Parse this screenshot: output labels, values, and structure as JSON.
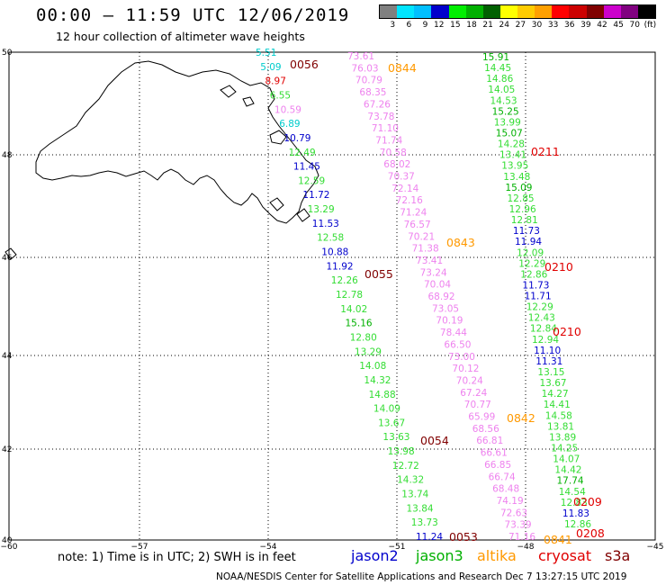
{
  "header": {
    "title": "00:00 – 11:59 UTC 12/06/2019",
    "subtitle": "12 hour collection of altimeter wave heights"
  },
  "color_scale": {
    "labels": [
      "3",
      "6",
      "9",
      "12",
      "15",
      "18",
      "21",
      "24",
      "27",
      "30",
      "33",
      "36",
      "39",
      "42",
      "45",
      "70",
      "(ft)"
    ],
    "colors": [
      "#808080",
      "#00e5ff",
      "#00bfff",
      "#0000cc",
      "#00ee00",
      "#00b000",
      "#006000",
      "#ffff00",
      "#ffcc00",
      "#ffa000",
      "#ff0000",
      "#cc0000",
      "#800000",
      "#cc00cc",
      "#800080",
      "#000000"
    ]
  },
  "map": {
    "lat_ticks": [
      "50",
      "48",
      "46",
      "44",
      "42",
      "40"
    ],
    "lon_ticks": [
      "−60",
      "−57",
      "−54",
      "−51",
      "−48",
      "−45"
    ]
  },
  "satellite_colors": {
    "jason2": "#0000cc",
    "jason3": "#00b000",
    "altika": "#ff9900",
    "cryosat": "#e00000",
    "s3a": "#800000",
    "pink": "#ee82ee",
    "cyan": "#00cccc",
    "lightgreen": "#33dd33"
  },
  "tracks": {
    "west": {
      "items": [
        {
          "v": "5.51",
          "c": "cyan"
        },
        {
          "v": "5.09",
          "c": "cyan"
        },
        {
          "v": "8.97",
          "c": "cryosat"
        },
        {
          "v": "6.55",
          "c": "lightgreen"
        },
        {
          "v": "10.59",
          "c": "pink"
        },
        {
          "v": "6.89",
          "c": "cyan"
        },
        {
          "v": "10.79",
          "c": "jason2"
        },
        {
          "v": "12.49",
          "c": "lightgreen"
        },
        {
          "v": "11.45",
          "c": "jason2"
        },
        {
          "v": "12.59",
          "c": "lightgreen"
        },
        {
          "v": "11.72",
          "c": "jason2"
        },
        {
          "v": "13.29",
          "c": "lightgreen"
        },
        {
          "v": "11.53",
          "c": "jason2"
        },
        {
          "v": "12.58",
          "c": "lightgreen"
        },
        {
          "v": "10.88",
          "c": "jason2"
        },
        {
          "v": "11.92",
          "c": "jason2"
        },
        {
          "v": "12.26",
          "c": "lightgreen"
        },
        {
          "v": "12.78",
          "c": "lightgreen"
        },
        {
          "v": "14.02",
          "c": "lightgreen"
        },
        {
          "v": "15.16",
          "c": "jason3"
        },
        {
          "v": "12.80",
          "c": "lightgreen"
        },
        {
          "v": "13.29",
          "c": "lightgreen"
        },
        {
          "v": "14.08",
          "c": "lightgreen"
        },
        {
          "v": "14.32",
          "c": "lightgreen"
        },
        {
          "v": "14.88",
          "c": "lightgreen"
        },
        {
          "v": "14.09",
          "c": "lightgreen"
        },
        {
          "v": "13.67",
          "c": "lightgreen"
        },
        {
          "v": "13.63",
          "c": "lightgreen"
        },
        {
          "v": "13.98",
          "c": "lightgreen"
        },
        {
          "v": "12.72",
          "c": "lightgreen"
        },
        {
          "v": "14.32",
          "c": "lightgreen"
        },
        {
          "v": "13.74",
          "c": "lightgreen"
        },
        {
          "v": "13.84",
          "c": "lightgreen"
        },
        {
          "v": "13.73",
          "c": "lightgreen"
        },
        {
          "v": "11.24",
          "c": "jason2"
        }
      ]
    },
    "middle": {
      "items": [
        {
          "v": "73.61",
          "c": "pink"
        },
        {
          "v": "76.03",
          "c": "pink"
        },
        {
          "v": "70.79",
          "c": "pink"
        },
        {
          "v": "68.35",
          "c": "pink"
        },
        {
          "v": "67.26",
          "c": "pink"
        },
        {
          "v": "73.78",
          "c": "pink"
        },
        {
          "v": "71.10",
          "c": "pink"
        },
        {
          "v": "71.74",
          "c": "pink"
        },
        {
          "v": "70.58",
          "c": "pink"
        },
        {
          "v": "68.02",
          "c": "pink"
        },
        {
          "v": "70.37",
          "c": "pink"
        },
        {
          "v": "72.14",
          "c": "pink"
        },
        {
          "v": "72.16",
          "c": "pink"
        },
        {
          "v": "71.24",
          "c": "pink"
        },
        {
          "v": "76.57",
          "c": "pink"
        },
        {
          "v": "70.21",
          "c": "pink"
        },
        {
          "v": "71.38",
          "c": "pink"
        },
        {
          "v": "73.41",
          "c": "pink"
        },
        {
          "v": "73.24",
          "c": "pink"
        },
        {
          "v": "70.04",
          "c": "pink"
        },
        {
          "v": "68.92",
          "c": "pink"
        },
        {
          "v": "73.05",
          "c": "pink"
        },
        {
          "v": "70.19",
          "c": "pink"
        },
        {
          "v": "78.44",
          "c": "pink"
        },
        {
          "v": "66.50",
          "c": "pink"
        },
        {
          "v": "73.00",
          "c": "pink"
        },
        {
          "v": "70.12",
          "c": "pink"
        },
        {
          "v": "70.24",
          "c": "pink"
        },
        {
          "v": "67.24",
          "c": "pink"
        },
        {
          "v": "70.77",
          "c": "pink"
        },
        {
          "v": "65.99",
          "c": "pink"
        },
        {
          "v": "68.56",
          "c": "pink"
        },
        {
          "v": "66.81",
          "c": "pink"
        },
        {
          "v": "66.61",
          "c": "pink"
        },
        {
          "v": "66.85",
          "c": "pink"
        },
        {
          "v": "66.74",
          "c": "pink"
        },
        {
          "v": "68.48",
          "c": "pink"
        },
        {
          "v": "74.19",
          "c": "pink"
        },
        {
          "v": "72.63",
          "c": "pink"
        },
        {
          "v": "73.39",
          "c": "pink"
        },
        {
          "v": "71.16",
          "c": "pink"
        }
      ]
    },
    "east": {
      "items": [
        {
          "v": "15.91",
          "c": "jason3"
        },
        {
          "v": "14.45",
          "c": "lightgreen"
        },
        {
          "v": "14.86",
          "c": "lightgreen"
        },
        {
          "v": "14.05",
          "c": "lightgreen"
        },
        {
          "v": "14.53",
          "c": "lightgreen"
        },
        {
          "v": "15.25",
          "c": "jason3"
        },
        {
          "v": "13.99",
          "c": "lightgreen"
        },
        {
          "v": "15.07",
          "c": "jason3"
        },
        {
          "v": "14.28",
          "c": "lightgreen"
        },
        {
          "v": "13.41",
          "c": "lightgreen"
        },
        {
          "v": "13.95",
          "c": "lightgreen"
        },
        {
          "v": "13.48",
          "c": "lightgreen"
        },
        {
          "v": "15.09",
          "c": "jason3"
        },
        {
          "v": "12.85",
          "c": "lightgreen"
        },
        {
          "v": "12.96",
          "c": "lightgreen"
        },
        {
          "v": "12.81",
          "c": "lightgreen"
        },
        {
          "v": "11.73",
          "c": "jason2"
        },
        {
          "v": "11.94",
          "c": "jason2"
        },
        {
          "v": "12.09",
          "c": "lightgreen"
        },
        {
          "v": "12.29",
          "c": "lightgreen"
        },
        {
          "v": "12.86",
          "c": "lightgreen"
        },
        {
          "v": "11.73",
          "c": "jason2"
        },
        {
          "v": "11.71",
          "c": "jason2"
        },
        {
          "v": "12.29",
          "c": "lightgreen"
        },
        {
          "v": "12.43",
          "c": "lightgreen"
        },
        {
          "v": "12.84",
          "c": "lightgreen"
        },
        {
          "v": "12.94",
          "c": "lightgreen"
        },
        {
          "v": "11.10",
          "c": "jason2"
        },
        {
          "v": "11.31",
          "c": "jason2"
        },
        {
          "v": "13.15",
          "c": "lightgreen"
        },
        {
          "v": "13.67",
          "c": "lightgreen"
        },
        {
          "v": "14.27",
          "c": "lightgreen"
        },
        {
          "v": "14.41",
          "c": "lightgreen"
        },
        {
          "v": "14.58",
          "c": "lightgreen"
        },
        {
          "v": "13.81",
          "c": "lightgreen"
        },
        {
          "v": "13.89",
          "c": "lightgreen"
        },
        {
          "v": "14.25",
          "c": "lightgreen"
        },
        {
          "v": "14.07",
          "c": "lightgreen"
        },
        {
          "v": "14.42",
          "c": "lightgreen"
        },
        {
          "v": "17.74",
          "c": "jason3"
        },
        {
          "v": "14.54",
          "c": "lightgreen"
        },
        {
          "v": "12.83",
          "c": "lightgreen"
        },
        {
          "v": "11.83",
          "c": "jason2"
        },
        {
          "v": "12.86",
          "c": "lightgreen"
        }
      ]
    }
  },
  "time_labels": [
    {
      "t": "0056",
      "c": "s3a"
    },
    {
      "t": "0844",
      "c": "altika"
    },
    {
      "t": "0211",
      "c": "cryosat"
    },
    {
      "t": "0843",
      "c": "altika"
    },
    {
      "t": "0210",
      "c": "cryosat"
    },
    {
      "t": "0055",
      "c": "s3a"
    },
    {
      "t": "0210",
      "c": "cryosat"
    },
    {
      "t": "0842",
      "c": "altika"
    },
    {
      "t": "0054",
      "c": "s3a"
    },
    {
      "t": "0209",
      "c": "cryosat"
    },
    {
      "t": "0053",
      "c": "s3a"
    },
    {
      "t": "0208",
      "c": "cryosat"
    },
    {
      "t": "0841",
      "c": "altika"
    }
  ],
  "footer": {
    "note": "note:  1) Time is in UTC;  2) SWH is in feet",
    "legend": {
      "jason2": "jason2",
      "jason3": "jason3",
      "altika": "altika",
      "cryosat": "cryosat",
      "s3a": "s3a"
    },
    "credit": "NOAA/NESDIS Center for Satellite Applications and Research     Dec  7 13:27:15 UTC 2019"
  }
}
